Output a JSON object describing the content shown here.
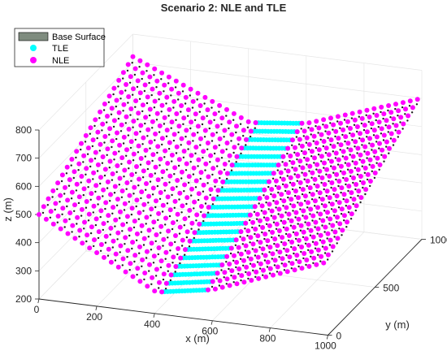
{
  "chart_data": {
    "type": "scatter",
    "title": "Scenario 2: NLE and TLE",
    "xlabel": "x (m)",
    "ylabel": "y (m)",
    "zlabel": "z (m)",
    "xlim": [
      0,
      1000
    ],
    "ylim": [
      0,
      1000
    ],
    "zlim": [
      200,
      800
    ],
    "xticks": [
      0,
      200,
      400,
      600,
      800,
      1000
    ],
    "yticks": [
      0,
      500,
      1000
    ],
    "zticks": [
      200,
      300,
      400,
      500,
      600,
      700,
      800
    ],
    "grid": true,
    "legend_position": "top-left",
    "series": [
      {
        "name": "Base Surface",
        "kind": "surface",
        "color": "#7f8c7f"
      },
      {
        "name": "TLE",
        "kind": "points",
        "color": "#00ffff"
      },
      {
        "name": "NLE",
        "kind": "points",
        "color": "#ff00ff"
      }
    ],
    "surface": {
      "description_x": [
        0,
        400,
        425,
        600,
        1000
      ],
      "description_y": [
        0,
        1000
      ],
      "z_grid": [
        [
          500,
          280,
          280,
          310,
          460
        ],
        [
          720,
          540,
          540,
          560,
          700
        ]
      ]
    },
    "tle_x_range": [
      425,
      585
    ],
    "nle_x_ranges": [
      [
        0,
        425
      ],
      [
        585,
        1000
      ]
    ]
  }
}
